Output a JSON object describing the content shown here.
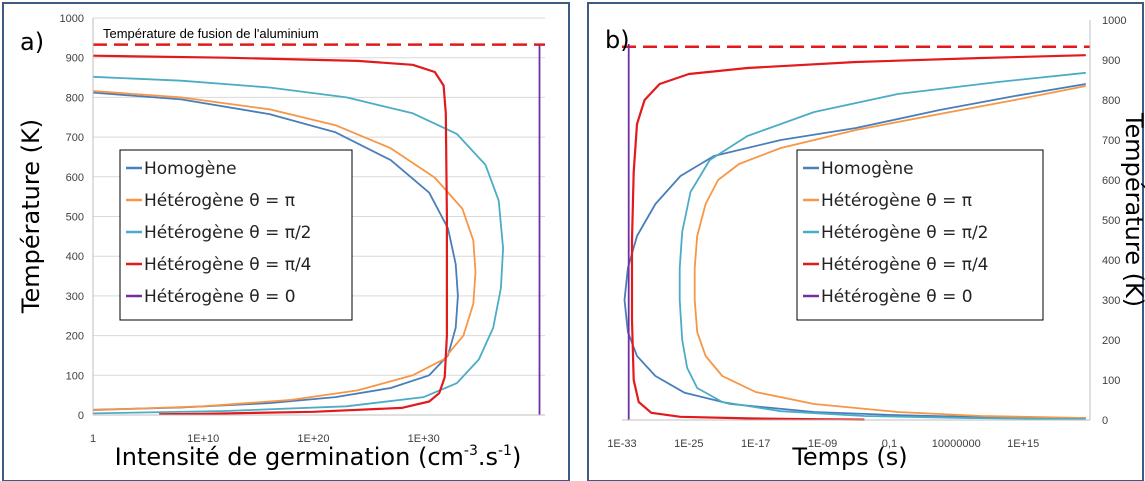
{
  "colors": {
    "homogene": "#4a7ebb",
    "pi": "#f79646",
    "pi2": "#4bacc6",
    "pi4": "#e31a1c",
    "zero": "#7030a0",
    "melt": "#e31a1c",
    "frame": "#3d5a80",
    "grid": "#d9d9d9"
  },
  "chart_data": [
    {
      "type": "line",
      "panel_label": "a)",
      "ylabel": "Température (K)",
      "xlabel_main": "Intensité de germination (cm",
      "xlabel_sup1": "-3",
      "xlabel_mid": ".s",
      "xlabel_sup2": "-1",
      "xlabel_end": ")",
      "x_scale": "log10",
      "xlim": [
        "1",
        "1E+41"
      ],
      "ylim": [
        0,
        1000
      ],
      "x_ticks": [
        "1",
        "1E+10",
        "1E+20",
        "1E+30"
      ],
      "y_ticks": [
        "0",
        "100",
        "200",
        "300",
        "400",
        "500",
        "600",
        "700",
        "800",
        "900",
        "1000"
      ],
      "grid": "horizontal",
      "legend_position": "left",
      "annotation": "Température de fusion de l'aluminium",
      "melting_point_K": 933,
      "series": [
        {
          "name": "Homogène",
          "points": [
            [
              0,
              812
            ],
            [
              8,
              795
            ],
            [
              16,
              758
            ],
            [
              22,
              712
            ],
            [
              27,
              642
            ],
            [
              30.5,
              560
            ],
            [
              32.2,
              470
            ],
            [
              32.9,
              380
            ],
            [
              33.1,
              300
            ],
            [
              32.9,
              220
            ],
            [
              32.2,
              150
            ],
            [
              30.5,
              100
            ],
            [
              27,
              68
            ],
            [
              22,
              45
            ],
            [
              16,
              30
            ],
            [
              8,
              19
            ],
            [
              0,
              13
            ]
          ]
        },
        {
          "name": "Hétérogène θ = π",
          "points": [
            [
              0,
              816
            ],
            [
              8,
              800
            ],
            [
              16,
              770
            ],
            [
              22,
              730
            ],
            [
              27,
              672
            ],
            [
              31,
              598
            ],
            [
              33.5,
              520
            ],
            [
              34.5,
              440
            ],
            [
              34.7,
              360
            ],
            [
              34.5,
              280
            ],
            [
              33.6,
              200
            ],
            [
              31.8,
              140
            ],
            [
              29,
              100
            ],
            [
              24,
              62
            ],
            [
              18,
              38
            ],
            [
              10,
              22
            ],
            [
              0,
              12
            ]
          ]
        },
        {
          "name": "Hétérogène θ = π/2",
          "points": [
            [
              0,
              852
            ],
            [
              8,
              842
            ],
            [
              16,
              825
            ],
            [
              23,
              800
            ],
            [
              29,
              760
            ],
            [
              33,
              708
            ],
            [
              35.6,
              630
            ],
            [
              36.8,
              540
            ],
            [
              37.2,
              420
            ],
            [
              37.0,
              320
            ],
            [
              36.3,
              220
            ],
            [
              35,
              140
            ],
            [
              33,
              80
            ],
            [
              30,
              45
            ],
            [
              23,
              22
            ],
            [
              12,
              10
            ],
            [
              0,
              4
            ]
          ]
        },
        {
          "name": "Hétérogène θ = π/4",
          "points": [
            [
              0,
              905
            ],
            [
              12,
              900
            ],
            [
              24,
              892
            ],
            [
              29,
              882
            ],
            [
              31,
              864
            ],
            [
              31.8,
              830
            ],
            [
              32.0,
              760
            ],
            [
              32.1,
              500
            ],
            [
              32.1,
              200
            ],
            [
              31.9,
              95
            ],
            [
              31.4,
              55
            ],
            [
              30.5,
              34
            ],
            [
              28,
              18
            ],
            [
              20,
              8
            ],
            [
              10,
              3
            ],
            [
              6,
              2
            ]
          ]
        },
        {
          "name": "Hétérogène θ = 0",
          "points": [
            [
              40.5,
              933
            ],
            [
              40.5,
              0
            ]
          ]
        }
      ]
    },
    {
      "type": "line",
      "panel_label": "b)",
      "ylabel": "Température (K)",
      "xlabel": "Temps (s)",
      "x_scale": "log10",
      "xlim": [
        "1E-33",
        "1E+23"
      ],
      "ylim": [
        0,
        1000
      ],
      "x_ticks": [
        "1E-33",
        "1E-25",
        "1E-17",
        "1E-09",
        "0,1",
        "10000000",
        "1E+15"
      ],
      "y_ticks": [
        "0",
        "100",
        "200",
        "300",
        "400",
        "500",
        "600",
        "700",
        "800",
        "900",
        "1000"
      ],
      "grid": "none",
      "legend_position": "center-right",
      "melting_point_K": 933,
      "series": [
        {
          "name": "Homogène",
          "points": [
            [
              22.5,
              840
            ],
            [
              14,
              810
            ],
            [
              5,
              775
            ],
            [
              -5,
              730
            ],
            [
              -14,
              700
            ],
            [
              -22,
              660
            ],
            [
              -26,
              610
            ],
            [
              -29,
              540
            ],
            [
              -31.2,
              460
            ],
            [
              -32.3,
              380
            ],
            [
              -32.7,
              300
            ],
            [
              -32.3,
              220
            ],
            [
              -31.2,
              160
            ],
            [
              -29,
              110
            ],
            [
              -25.5,
              68
            ],
            [
              -20,
              40
            ],
            [
              -10,
              20
            ],
            [
              0,
              12
            ],
            [
              10,
              7
            ],
            [
              22.5,
              5
            ]
          ]
        },
        {
          "name": "Hétérogène θ = π",
          "points": [
            [
              22.5,
              835
            ],
            [
              14,
              800
            ],
            [
              5,
              765
            ],
            [
              -5,
              725
            ],
            [
              -14,
              680
            ],
            [
              -19,
              640
            ],
            [
              -21.5,
              600
            ],
            [
              -23,
              540
            ],
            [
              -24,
              460
            ],
            [
              -24.3,
              380
            ],
            [
              -24.3,
              300
            ],
            [
              -24,
              220
            ],
            [
              -23,
              160
            ],
            [
              -21,
              110
            ],
            [
              -17,
              70
            ],
            [
              -10,
              40
            ],
            [
              0,
              20
            ],
            [
              10,
              10
            ],
            [
              22.5,
              5
            ]
          ]
        },
        {
          "name": "Hétérogène θ = π/2",
          "points": [
            [
              22.5,
              868
            ],
            [
              12,
              845
            ],
            [
              0,
              815
            ],
            [
              -10,
              770
            ],
            [
              -18,
              710
            ],
            [
              -22.5,
              650
            ],
            [
              -24.8,
              570
            ],
            [
              -25.8,
              470
            ],
            [
              -26.1,
              380
            ],
            [
              -26.1,
              300
            ],
            [
              -25.8,
              200
            ],
            [
              -25.2,
              130
            ],
            [
              -24,
              80
            ],
            [
              -21,
              45
            ],
            [
              -14,
              22
            ],
            [
              -4,
              10
            ],
            [
              8,
              5
            ],
            [
              22.5,
              2
            ]
          ]
        },
        {
          "name": "Hétérogène θ = π/4",
          "points": [
            [
              22.5,
              912
            ],
            [
              10,
              905
            ],
            [
              -5,
              895
            ],
            [
              -18,
              880
            ],
            [
              -25,
              865
            ],
            [
              -28.5,
              840
            ],
            [
              -30.3,
              800
            ],
            [
              -31.2,
              740
            ],
            [
              -31.6,
              620
            ],
            [
              -31.8,
              450
            ],
            [
              -31.8,
              250
            ],
            [
              -31.6,
              100
            ],
            [
              -31,
              45
            ],
            [
              -29.5,
              18
            ],
            [
              -26,
              8
            ],
            [
              -18,
              4
            ],
            [
              -10,
              2
            ],
            [
              -4,
              1
            ]
          ]
        },
        {
          "name": "Hétérogène θ = 0",
          "points": [
            [
              -32.2,
              940
            ],
            [
              -32.2,
              0
            ]
          ]
        }
      ]
    }
  ]
}
